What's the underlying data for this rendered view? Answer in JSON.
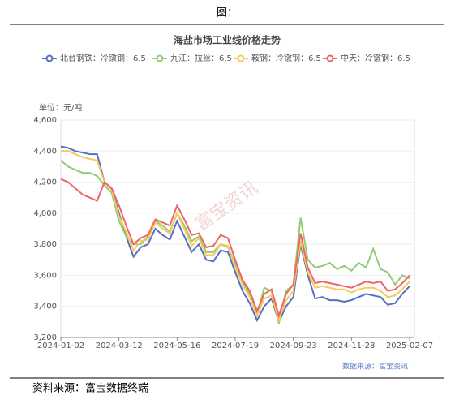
{
  "header": "图：",
  "footer": "资料来源：富宝数据终端",
  "chart_data": {
    "type": "line",
    "title": "海盐市场工业线价格走势",
    "y_label": "单位：元/吨",
    "watermark": "富宝资讯",
    "source_note": "数据来源：富宝资讯",
    "categories": [
      "2024-01-02",
      null,
      null,
      null,
      null,
      null,
      null,
      null,
      "2024-03-12",
      null,
      null,
      null,
      null,
      null,
      null,
      null,
      "2024-05-16",
      null,
      null,
      null,
      null,
      null,
      null,
      null,
      "2024-07-19",
      null,
      null,
      null,
      null,
      null,
      null,
      null,
      "2024-09-23",
      null,
      null,
      null,
      null,
      null,
      null,
      null,
      "2024-11-28",
      null,
      null,
      null,
      null,
      null,
      null,
      null,
      "2025-02-07"
    ],
    "ylim": [
      3200,
      4600
    ],
    "yticks": [
      {
        "value": 3200,
        "label": "3,200"
      },
      {
        "value": 3400,
        "label": "3,400"
      },
      {
        "value": 3600,
        "label": "3,600"
      },
      {
        "value": 3800,
        "label": "3,800"
      },
      {
        "value": 4000,
        "label": "4,000"
      },
      {
        "value": 4200,
        "label": "4,200"
      },
      {
        "value": 4400,
        "label": "4,400"
      },
      {
        "value": 4600,
        "label": "4,600"
      }
    ],
    "grid": true,
    "series": [
      {
        "name": "北台钢铁：冷镦钢：6.5",
        "color": "#5470c6",
        "values": [
          4430,
          4420,
          4400,
          4390,
          4380,
          4380,
          4200,
          4160,
          4000,
          3850,
          3720,
          3780,
          3800,
          3900,
          3860,
          3830,
          3950,
          3850,
          3750,
          3800,
          3700,
          3690,
          3760,
          3750,
          3620,
          3500,
          3420,
          3310,
          3400,
          3450,
          3300,
          3400,
          3460,
          3800,
          3600,
          3450,
          3460,
          3440,
          3440,
          3430,
          3440,
          3460,
          3480,
          3470,
          3460,
          3410,
          3420,
          3480,
          3530
        ]
      },
      {
        "name": "九江：拉丝：6.5",
        "color": "#91cc75",
        "values": [
          4340,
          4300,
          4280,
          4260,
          4260,
          4240,
          4180,
          4130,
          3950,
          3850,
          3800,
          3800,
          3850,
          3950,
          3920,
          3880,
          4000,
          3920,
          3820,
          3850,
          3750,
          3750,
          3800,
          3780,
          3680,
          3560,
          3480,
          3350,
          3520,
          3500,
          3290,
          3500,
          3540,
          3970,
          3700,
          3650,
          3660,
          3680,
          3640,
          3660,
          3630,
          3680,
          3650,
          3770,
          3640,
          3620,
          3540,
          3600,
          3580
        ]
      },
      {
        "name": "鞍钢：冷镦钢：6.5",
        "color": "#fac858",
        "values": [
          4400,
          4400,
          4380,
          4360,
          4350,
          4340,
          4200,
          4150,
          3980,
          3880,
          3760,
          3820,
          3830,
          3940,
          3900,
          3870,
          4000,
          3900,
          3790,
          3840,
          3730,
          3730,
          3800,
          3790,
          3650,
          3540,
          3460,
          3340,
          3450,
          3470,
          3310,
          3440,
          3500,
          3820,
          3620,
          3520,
          3530,
          3520,
          3510,
          3510,
          3490,
          3510,
          3520,
          3520,
          3500,
          3460,
          3470,
          3510,
          3560
        ]
      },
      {
        "name": "中天：冷镦钢：6.5",
        "color": "#ee6666",
        "values": [
          4220,
          4200,
          4160,
          4120,
          4100,
          4080,
          4200,
          4160,
          4050,
          3920,
          3800,
          3840,
          3860,
          3960,
          3940,
          3920,
          4050,
          3960,
          3860,
          3870,
          3780,
          3790,
          3860,
          3840,
          3700,
          3570,
          3500,
          3370,
          3480,
          3510,
          3340,
          3480,
          3540,
          3870,
          3650,
          3550,
          3560,
          3550,
          3540,
          3530,
          3520,
          3540,
          3560,
          3550,
          3560,
          3500,
          3510,
          3550,
          3600
        ]
      }
    ]
  }
}
